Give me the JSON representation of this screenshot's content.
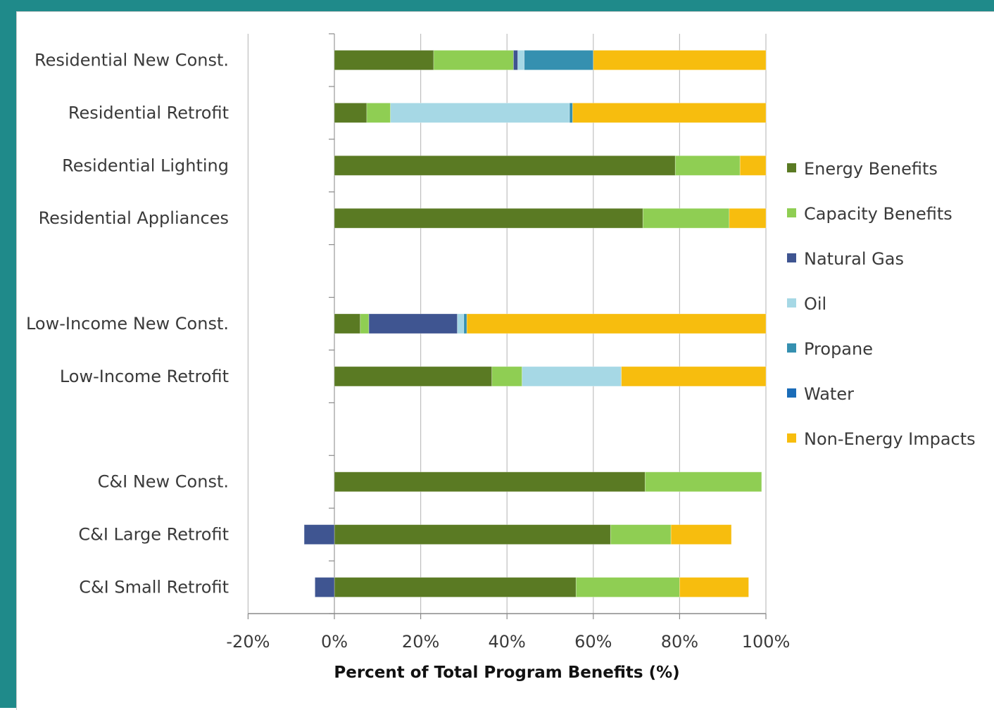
{
  "chart_data": {
    "type": "bar",
    "orientation": "horizontal",
    "stacked": true,
    "title": "",
    "xlabel": "Percent of Total Program Benefits (%)",
    "ylabel": "",
    "xlim": [
      -20,
      100
    ],
    "xticks": [
      -20,
      0,
      20,
      40,
      60,
      80,
      100
    ],
    "xtick_labels": [
      "-20%",
      "0%",
      "20%",
      "40%",
      "60%",
      "80%",
      "100%"
    ],
    "grid": "vertical",
    "legend_position": "right",
    "categories": [
      "Residential New Const.",
      "Residential Retrofit",
      "Residential Lighting",
      "Residential Appliances",
      "",
      "Low-Income New Const.",
      "Low-Income Retrofit",
      "",
      "C&I New Const.",
      "C&I Large Retrofit",
      "C&I Small Retrofit"
    ],
    "series": [
      {
        "name": "Energy Benefits",
        "color": "#5a7a23",
        "values": [
          23,
          7.5,
          79,
          71.5,
          0,
          6,
          36.5,
          0,
          72,
          64,
          56
        ]
      },
      {
        "name": "Capacity Benefits",
        "color": "#8fce53",
        "values": [
          18.5,
          5.5,
          15,
          20,
          0,
          2,
          7,
          0,
          27,
          14,
          24
        ]
      },
      {
        "name": "Natural Gas",
        "color": "#3f5591",
        "values": [
          1,
          0,
          0,
          0,
          0,
          20.5,
          0,
          0,
          0,
          -7,
          -4.5
        ]
      },
      {
        "name": "Oil",
        "color": "#a6d8e5",
        "values": [
          1.5,
          41.5,
          0,
          0,
          0,
          1.5,
          23,
          0,
          0,
          0,
          0
        ]
      },
      {
        "name": "Propane",
        "color": "#3590b0",
        "values": [
          16,
          0.7,
          0,
          0,
          0,
          0.7,
          0,
          0,
          0,
          0,
          0
        ]
      },
      {
        "name": "Water",
        "color": "#1a6cb8",
        "values": [
          0,
          0,
          0,
          0,
          0,
          0,
          0,
          0,
          0,
          0,
          0
        ]
      },
      {
        "name": "Non-Energy Impacts",
        "color": "#f7bd0e",
        "values": [
          40,
          44.8,
          6,
          8.5,
          0,
          69.3,
          33.5,
          0,
          0,
          14,
          16
        ]
      }
    ]
  }
}
